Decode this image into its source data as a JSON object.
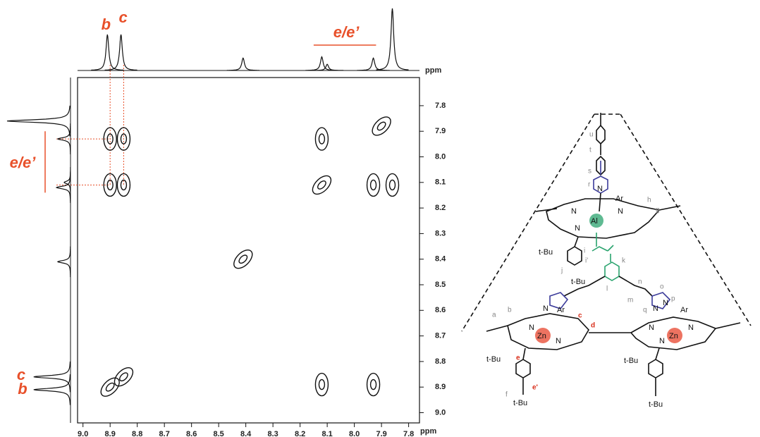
{
  "chart_data": {
    "type": "contour",
    "xlabel": "ppm",
    "ylabel": "ppm",
    "xlim": [
      9.02,
      7.76
    ],
    "ylim": [
      7.69,
      9.04
    ],
    "xticks": [
      {
        "value": 9.0,
        "label": "9.0"
      },
      8.9,
      8.8,
      8.7,
      8.6,
      8.5,
      8.4,
      8.3,
      8.2,
      8.1,
      {
        "value": 8.0,
        "label": "8.0"
      },
      7.9,
      7.8
    ],
    "yticks": [
      7.8,
      7.9,
      {
        "value": 8.0,
        "label": "8.0"
      },
      8.1,
      8.2,
      8.3,
      8.4,
      8.5,
      8.6,
      8.7,
      8.8,
      8.9,
      {
        "value": 9.0,
        "label": "9.0"
      }
    ],
    "x": [
      8.9,
      8.85,
      8.9,
      8.85,
      8.12,
      8.12,
      7.93,
      7.86,
      7.9,
      8.41,
      8.9,
      8.85,
      8.12,
      7.93
    ],
    "values": [
      7.93,
      7.93,
      8.11,
      8.11,
      7.93,
      8.11,
      8.11,
      8.11,
      7.88,
      8.4,
      8.9,
      8.86,
      8.89,
      8.89
    ],
    "color": "#111111",
    "projection": {
      "x": [
        8.91,
        8.86,
        8.41,
        8.12,
        8.1,
        7.93,
        7.86
      ],
      "values": [
        0.58,
        0.58,
        0.2,
        0.22,
        0.1,
        0.2,
        1.0
      ]
    },
    "annotations": [
      "b",
      "c",
      "e/e’",
      "e/e’",
      "c",
      "b"
    ],
    "annotation_color": "#e8502a"
  },
  "structure": {
    "labels": [
      "u",
      "t",
      "s",
      "r",
      "N",
      "Ar",
      "h",
      "g",
      "Al",
      "N",
      "N",
      "N",
      "i",
      "i'",
      "t-Bu",
      "j",
      "t-Bu",
      "k",
      "l",
      "m",
      "n",
      "o",
      "p",
      "N",
      "N",
      "q",
      "N",
      "a",
      "b",
      "N",
      "Ar",
      "c",
      "d",
      "Zn",
      "N",
      "N",
      "Zn",
      "N",
      "Ar",
      "N",
      "e",
      "e'",
      "f",
      "t-Bu",
      "t-Bu",
      "t-Bu",
      "t-Bu"
    ]
  }
}
